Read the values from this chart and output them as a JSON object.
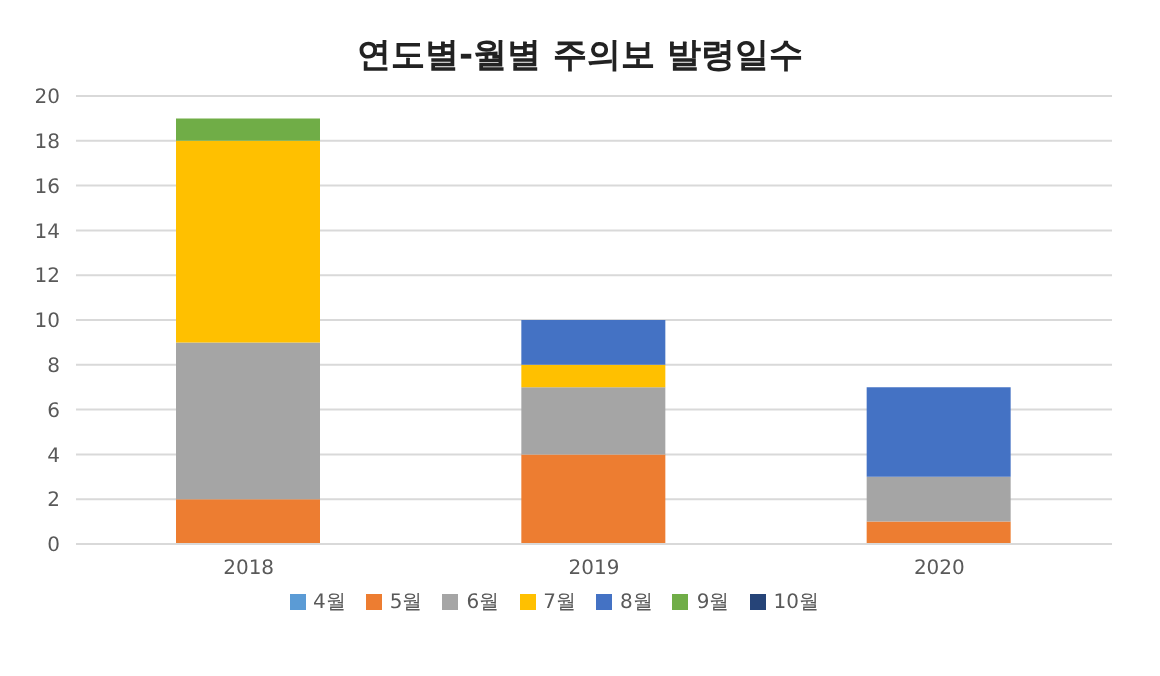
{
  "chart_data": {
    "type": "bar",
    "title": "연도별-월별 주의보 발령일수",
    "categories": [
      "2018",
      "2019",
      "2020"
    ],
    "stacked": true,
    "series": [
      {
        "name": "4월",
        "color": "#5b9bd5",
        "values": [
          0,
          0,
          0
        ]
      },
      {
        "name": "5월",
        "color": "#ed7d31",
        "values": [
          2,
          4,
          1
        ]
      },
      {
        "name": "6월",
        "color": "#a5a5a5",
        "values": [
          7,
          3,
          2
        ]
      },
      {
        "name": "7월",
        "color": "#ffc000",
        "values": [
          9,
          1,
          0
        ]
      },
      {
        "name": "8월",
        "color": "#4472c4",
        "values": [
          0,
          2,
          4
        ]
      },
      {
        "name": "9월",
        "color": "#70ad47",
        "values": [
          1,
          0,
          0
        ]
      },
      {
        "name": "10월",
        "color": "#264478",
        "values": [
          0,
          0,
          0
        ]
      }
    ],
    "ylim": [
      0,
      20
    ],
    "yticks": [
      0,
      2,
      4,
      6,
      8,
      10,
      12,
      14,
      16,
      18,
      20
    ],
    "grid": "y",
    "legend": "bottom"
  }
}
